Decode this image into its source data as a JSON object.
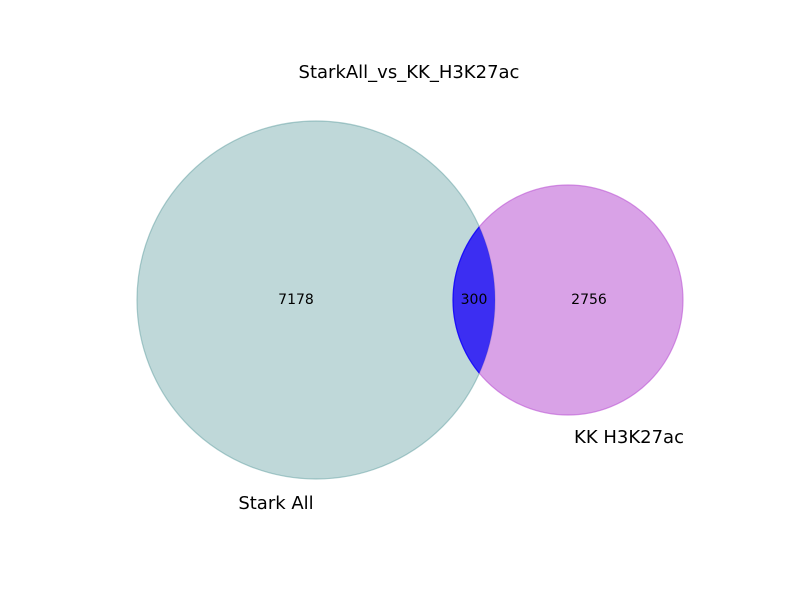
{
  "chart_data": {
    "type": "venn",
    "title": "StarkAll_vs_KK_H3K27ac",
    "sets": [
      {
        "name": "Stark All",
        "only_count": 7178,
        "color": "#5f9ea0"
      },
      {
        "name": "KK H3K27ac",
        "only_count": 2756,
        "color": "#ba55d3"
      }
    ],
    "intersection": {
      "count": 300,
      "color": "#0000ff"
    },
    "labels": {
      "title": "StarkAll_vs_KK_H3K27ac",
      "set_a": "Stark All",
      "set_b": "KK H3K27ac",
      "count_a_only": "7178",
      "count_b_only": "2756",
      "count_both": "300"
    }
  }
}
